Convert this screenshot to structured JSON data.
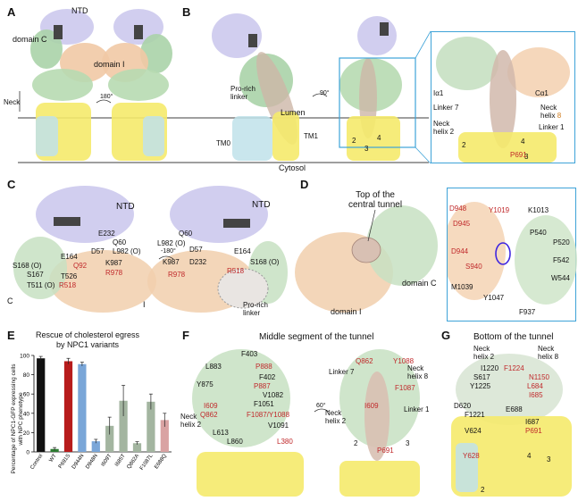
{
  "panels": {
    "a": {
      "letter": "A",
      "ntd": "NTD",
      "domain_c": "domain C",
      "domain_i": "domain I",
      "neck": "Neck",
      "rot": "180°"
    },
    "b": {
      "letter": "B",
      "prorich": "Pro-rich\nlinker",
      "rot": "90°",
      "lumen": "Lumen",
      "cytosol": "Cytosol",
      "tm0": "TM0",
      "tm1": "TM1",
      "n2": "2",
      "n3": "3",
      "n4": "4",
      "inset": {
        "ia1": "Iα1",
        "ca1": "Cα1",
        "linker7": "Linker 7",
        "neck8a": "Neck",
        "neck8b": "helix",
        "neck8n": "8",
        "linker1": "Linker 1",
        "neck2": "Neck\nhelix 2",
        "p691": "P691",
        "n2": "2",
        "n3": "3",
        "n4": "4"
      }
    },
    "c": {
      "letter": "C",
      "ntd1": "NTD",
      "ntd2": "NTD",
      "rot": "-180°",
      "left": [
        "E232",
        "Q60",
        "L982 (O)",
        "D57",
        "K987",
        "E164",
        "Q92",
        "S168 (O)",
        "S167",
        "T526",
        "T511 (O)",
        "R518",
        "R978"
      ],
      "right": [
        "Q60",
        "L982 (O)",
        "D57",
        "K987",
        "D232",
        "E164",
        "R978",
        "R518",
        "S168 (O)",
        "Pro-rich\nlinker"
      ],
      "c_mark": "C",
      "i_mark": "I"
    },
    "d": {
      "letter": "D",
      "title": "Top of the\ncentral tunnel",
      "domain_c": "domain C",
      "domain_i": "domain I",
      "inset": [
        "D948",
        "Y1019",
        "K1013",
        "D945",
        "P540",
        "P520",
        "D944",
        "F542",
        "S940",
        "W544",
        "M1039",
        "Y1047",
        "F937"
      ]
    },
    "e": {
      "letter": "E",
      "title": "Rescue of cholesterol egress\nby NPC1 variants",
      "ylabel": "Percentage of NPC1-GFP expressing cells\nwith NPC phenotype"
    },
    "f": {
      "letter": "F",
      "title": "Middle segment of the tunnel",
      "left": [
        "F403",
        "L883",
        "P888",
        "F402",
        "Y875",
        "P887",
        "V1082",
        "F1051",
        "I609",
        "Q862",
        "F1087/Y1088",
        "Neck\nhelix 2",
        "V1091",
        "L613",
        "L860",
        "L380"
      ],
      "rot": "60°",
      "right": [
        "Q862",
        "Y1088",
        "Linker 7",
        "Neck\nhelix 8",
        "F1087",
        "I609",
        "Neck\nhelix 2",
        "Linker 1",
        "P691",
        "2",
        "3"
      ]
    },
    "g": {
      "letter": "G",
      "title": "Bottom of the tunnel",
      "labels": [
        "Neck\nhelix 2",
        "Neck\nhelix 8",
        "I1220",
        "F1224",
        "S617",
        "N1150",
        "Y1225",
        "L684",
        "I685",
        "D620",
        "F1221",
        "E688",
        "I687",
        "V624",
        "P691",
        "Y628",
        "4",
        "3",
        "2"
      ]
    }
  },
  "chart_data": {
    "type": "bar",
    "categories": [
      "Control",
      "WT",
      "P691S",
      "D944N",
      "D948N",
      "I609T",
      "I685T",
      "Q862A",
      "F1087L",
      "E688Q"
    ],
    "values": [
      97,
      3,
      94,
      91,
      11,
      27,
      53,
      9,
      52,
      33
    ],
    "errors": [
      2,
      1.5,
      3,
      2,
      2,
      9,
      16,
      1.5,
      8,
      7
    ],
    "colors": [
      "#111111",
      "#2e7d32",
      "#b71c1c",
      "#7aa6d8",
      "#7aa6d8",
      "#a3b5a0",
      "#a3b5a0",
      "#a3b5a0",
      "#a3b5a0",
      "#d9a3a3"
    ],
    "ylim": [
      0,
      100
    ],
    "yticks": [
      0,
      20,
      40,
      60,
      80,
      100
    ]
  }
}
